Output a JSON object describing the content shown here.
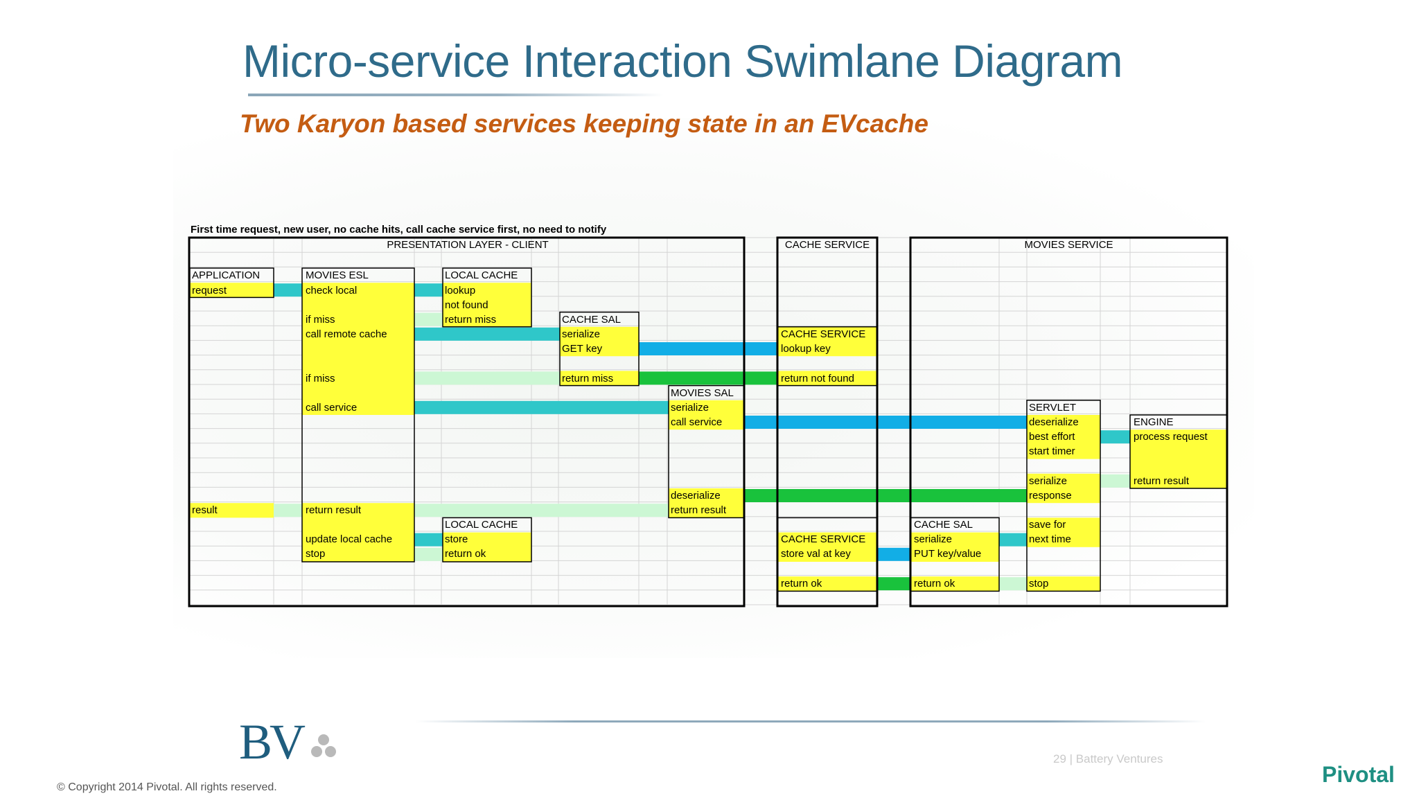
{
  "title": "Micro-service Interaction Swimlane Diagram",
  "subtitle": "Two Karyon based services keeping state in an EVcache",
  "diagram": {
    "header": "First time request, new user, no cache hits, call cache service first, no need to notify",
    "lanes": {
      "presentation": "PRESENTATION LAYER - CLIENT",
      "cache_service": "CACHE SERVICE",
      "movies_service": "MOVIES SERVICE"
    },
    "cells": {
      "application": "APPLICATION",
      "request": "request",
      "result": "result",
      "movies_esl": "MOVIES ESL",
      "check_local": "check local",
      "if_miss_1": "if miss",
      "call_remote_cache": "call remote cache",
      "if_miss_2": "if miss",
      "call_service": "call service",
      "return_result_esl": "return result",
      "update_local_cache": "update local cache",
      "stop_esl": "stop",
      "local_cache_1": "LOCAL CACHE",
      "lookup": "lookup",
      "not_found": "not found",
      "return_miss": "return miss",
      "local_cache_2": "LOCAL CACHE",
      "store": "store",
      "return_ok_lc": "return ok",
      "cache_sal": "CACHE SAL",
      "serialize_cs": "serialize",
      "get_key": "GET key",
      "return_miss_cs": "return miss",
      "movies_sal": "MOVIES SAL",
      "serialize_ms": "serialize",
      "call_service_ms": "call service",
      "deserialize_ms": "deserialize",
      "return_result_ms": "return result",
      "cache_service_1": "CACHE SERVICE",
      "lookup_key": "lookup key",
      "return_not_found": "return not found",
      "cache_service_2": "CACHE SERVICE",
      "store_val_at_key": "store val at key",
      "return_ok_cs": "return ok",
      "cache_sal_2": "CACHE SAL",
      "serialize_2": "serialize",
      "put_key_value": "PUT key/value",
      "return_ok_2": "return ok",
      "servlet": "SERVLET",
      "deserialize_sv": "deserialize",
      "best_effort": "best effort",
      "start_timer": "start timer",
      "serialize_sv": "serialize",
      "response": "response",
      "save_for": "save for",
      "next_time": "next time",
      "stop_sv": "stop",
      "engine": "ENGINE",
      "process_request": "process request",
      "return_result_engine": "return result"
    }
  },
  "colors": {
    "title": "#2f6b8a",
    "subtitle": "#c45c12",
    "box_fill": "#ffff3a",
    "teal": "#2fc7c9",
    "blue": "#12aee6",
    "green": "#19c23c",
    "pale_green": "#ccf7d4"
  },
  "footer": {
    "logo_text": "BV",
    "page_info": "29 | Battery Ventures",
    "brand": "Pivotal",
    "copyright": "© Copyright 2014 Pivotal. All rights reserved."
  }
}
